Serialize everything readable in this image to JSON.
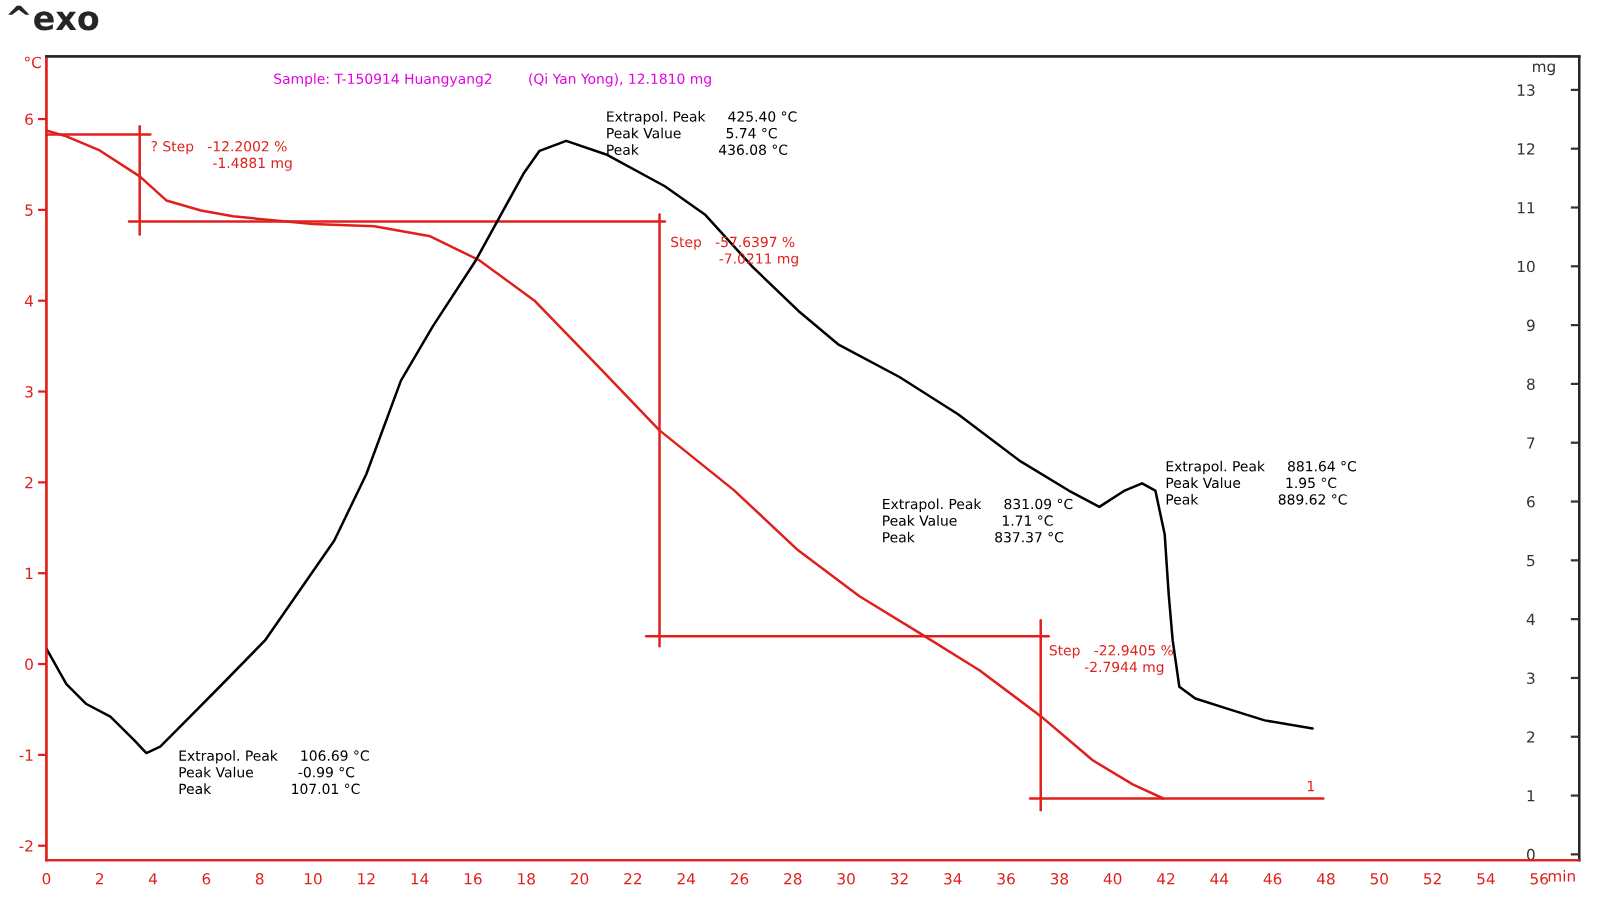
{
  "chart_data": {
    "type": "line",
    "title": "^exo",
    "xlabel": "min",
    "ylabel": "°C",
    "y2label": "mg",
    "xlim": [
      0,
      57.5
    ],
    "xticks": [
      0,
      2,
      4,
      6,
      8,
      10,
      12,
      14,
      16,
      18,
      20,
      22,
      24,
      26,
      28,
      30,
      32,
      34,
      36,
      38,
      40,
      42,
      44,
      46,
      48,
      50,
      52,
      54,
      56
    ],
    "ylim": [
      -2.16,
      6.69
    ],
    "yticks": [
      -2,
      -1,
      0,
      1,
      2,
      3,
      4,
      5,
      6
    ],
    "y2lim": [
      -0.1,
      13.57
    ],
    "y2ticks": [
      0,
      1,
      2,
      3,
      4,
      5,
      6,
      7,
      8,
      9,
      10,
      11,
      12,
      13
    ],
    "grid": false,
    "legend": false,
    "marker": "none",
    "line_style": "solid",
    "series": [
      {
        "color": "#000000",
        "x": [
          0,
          0.75,
          1.5,
          2.4,
          3.3,
          3.75,
          4.27,
          5.25,
          6.5,
          8.2,
          9.5,
          10.8,
          12.0,
          13.3,
          14.5,
          16.1,
          17.9,
          18.5,
          19.5,
          21.0,
          23.2,
          24.7,
          26.5,
          28.2,
          29.7,
          32.0,
          34.2,
          36.5,
          38.35,
          39.5,
          40.45,
          41.1,
          41.6,
          41.95,
          42.1,
          42.25,
          42.5,
          43.1,
          44.5,
          45.7,
          47.5
        ],
        "values": [
          0.17,
          -0.22,
          -0.44,
          -0.58,
          -0.84,
          -0.98,
          -0.91,
          -0.62,
          -0.25,
          0.26,
          0.81,
          1.36,
          2.09,
          3.12,
          3.72,
          4.44,
          5.4,
          5.65,
          5.76,
          5.61,
          5.26,
          4.95,
          4.37,
          3.89,
          3.52,
          3.16,
          2.75,
          2.24,
          1.91,
          1.73,
          1.91,
          1.99,
          1.91,
          1.43,
          0.77,
          0.26,
          -0.25,
          -0.38,
          -0.51,
          -0.62,
          -0.71
        ]
      },
      {
        "color": "#e0201c",
        "axis": "y2",
        "x": [
          0,
          0.75,
          2.0,
          3.5,
          4.5,
          5.8,
          7.0,
          9.0,
          10.0,
          12.3,
          14.4,
          16.25,
          18.3,
          20.7,
          23.0,
          25.8,
          28.2,
          30.5,
          32.7,
          35.0,
          37.3,
          39.25,
          40.75,
          41.9
        ],
        "values": [
          12.31,
          12.21,
          11.97,
          11.53,
          11.12,
          10.95,
          10.85,
          10.76,
          10.72,
          10.68,
          10.51,
          10.1,
          9.42,
          8.3,
          7.21,
          6.19,
          5.17,
          4.39,
          3.78,
          3.13,
          2.35,
          1.6,
          1.19,
          0.95
        ]
      },
      {
        "color": "#e0201c",
        "axis": "y2",
        "x": [
          0,
          3.9
        ],
        "values": [
          12.24,
          12.24
        ]
      },
      {
        "color": "#e0201c",
        "axis": "y2",
        "x": [
          3.5,
          3.5
        ],
        "values": [
          12.38,
          10.54
        ]
      },
      {
        "color": "#e0201c",
        "axis": "y2",
        "x": [
          3.1,
          23.2
        ],
        "values": [
          10.76,
          10.76
        ]
      },
      {
        "color": "#e0201c",
        "axis": "y2",
        "x": [
          23.0,
          23.0
        ],
        "values": [
          10.88,
          3.54
        ]
      },
      {
        "color": "#e0201c",
        "axis": "y2",
        "x": [
          22.5,
          37.6
        ],
        "values": [
          3.71,
          3.71
        ]
      },
      {
        "color": "#e0201c",
        "axis": "y2",
        "x": [
          37.3,
          37.3
        ],
        "values": [
          3.98,
          0.75
        ]
      },
      {
        "color": "#e0201c",
        "axis": "y2",
        "x": [
          36.9,
          47.9
        ],
        "values": [
          0.95,
          0.95
        ]
      }
    ],
    "annotations": [
      "Sample: T-150914 Huangyang2        (Qi Yan Yong), 12.1810 mg",
      "? Step   -12.2002 %\n              -1.4881 mg",
      "Step   -57.6397 %\n           -7.0211 mg",
      "Step   -22.9405 %\n        -2.7944 mg",
      "Extrapol. Peak     425.40 °C\nPeak Value          5.74 °C\nPeak                  436.08 °C",
      "Extrapol. Peak     831.09 °C\nPeak Value          1.71 °C\nPeak                  837.37 °C",
      "Extrapol. Peak     881.64 °C\nPeak Value          1.95 °C\nPeak                  889.62 °C",
      "Extrapol. Peak     106.69 °C\nPeak Value          -0.99 °C\nPeak                  107.01 °C",
      "1"
    ]
  }
}
